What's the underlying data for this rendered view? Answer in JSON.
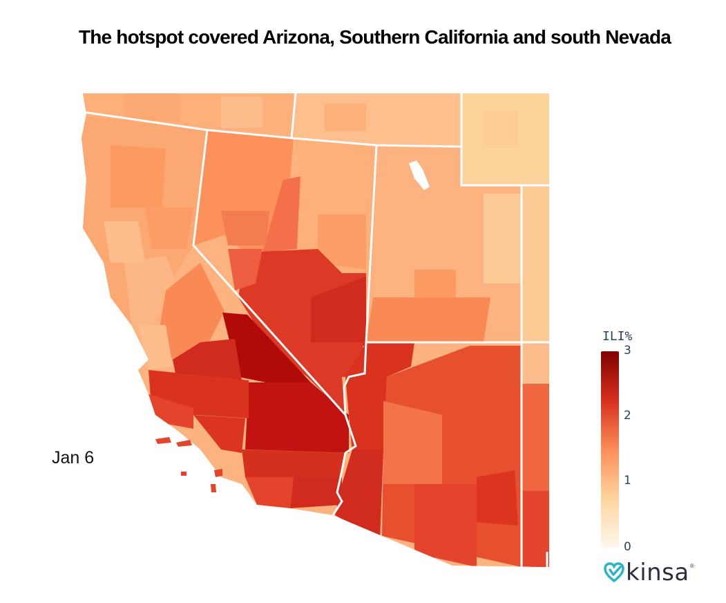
{
  "title": "The hotspot covered Arizona, Southern California and south Nevada",
  "date_label": "Jan 6",
  "legend": {
    "title": "ILI%",
    "ticks": [
      "3",
      "2",
      "1",
      "0"
    ],
    "tick_values": [
      3,
      2,
      1,
      0
    ],
    "range": [
      0,
      3
    ],
    "colors": [
      "#fff7ec",
      "#fdd49e",
      "#fc8d59",
      "#d7301f",
      "#7f0000"
    ]
  },
  "logo": {
    "text": "kinsa",
    "mark": "®",
    "heart_color": "#2ab4c4",
    "text_color": "#2b2d42"
  },
  "map": {
    "regions": [
      "Oregon",
      "Idaho",
      "California",
      "Nevada",
      "Utah",
      "Wyoming",
      "Colorado",
      "Arizona",
      "New Mexico"
    ],
    "hotspot_states": [
      "Arizona",
      "Southern California",
      "south Nevada"
    ]
  }
}
